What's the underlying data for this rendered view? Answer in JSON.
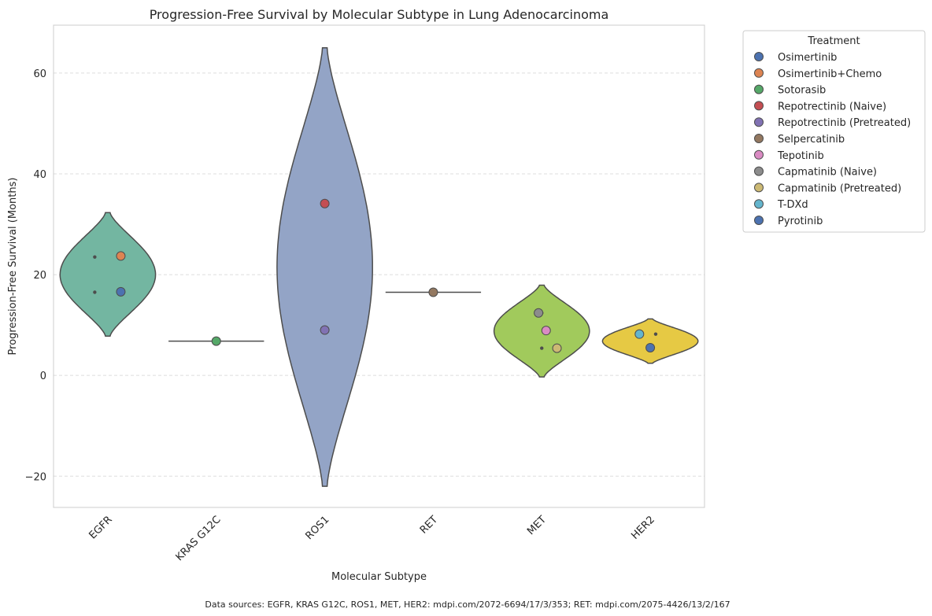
{
  "chart_data": {
    "type": "violin",
    "title": "Progression-Free Survival by Molecular Subtype in Lung Adenocarcinoma",
    "xlabel": "Molecular Subtype",
    "ylabel": "Progression-Free Survival (Months)",
    "ylim": [
      -26.2,
      69.5
    ],
    "yticks": [
      -20,
      0,
      20,
      40,
      60
    ],
    "ytick_labels": [
      "−20",
      "0",
      "20",
      "40",
      "60"
    ],
    "grid": "y-dashed",
    "categories": [
      "EGFR",
      "KRAS G12C",
      "ROS1",
      "RET",
      "MET",
      "HER2"
    ],
    "violins": [
      {
        "category": "EGFR",
        "color": "#73b6a1",
        "min": 7.8,
        "max": 32.3,
        "center": 20.0,
        "half_width": 0.44,
        "values": [
          23.5,
          16.5
        ]
      },
      {
        "category": "KRAS G12C",
        "color": "#f0a07a",
        "min": 6.8,
        "max": 6.8,
        "center": 6.8,
        "half_width": 0.0,
        "values": [
          6.8
        ]
      },
      {
        "category": "ROS1",
        "color": "#93a4c6",
        "min": -22.0,
        "max": 65.0,
        "center": 21.5,
        "half_width": 0.44,
        "values": [
          34.1,
          9.0
        ]
      },
      {
        "category": "RET",
        "color": "#e095c0",
        "min": 16.5,
        "max": 16.5,
        "center": 16.5,
        "half_width": 0.0,
        "values": [
          16.5
        ]
      },
      {
        "category": "MET",
        "color": "#a1ca5c",
        "min": -0.3,
        "max": 17.9,
        "center": 8.8,
        "half_width": 0.44,
        "values": [
          12.4,
          8.9,
          5.4
        ]
      },
      {
        "category": "HER2",
        "color": "#e6c944",
        "min": 2.4,
        "max": 11.2,
        "center": 6.8,
        "half_width": 0.44,
        "values": [
          8.2,
          5.5
        ]
      }
    ],
    "points": [
      {
        "treatment": "Osimertinib",
        "category": "EGFR",
        "value": 16.6,
        "offset": 0.12
      },
      {
        "treatment": "Osimertinib+Chemo",
        "category": "EGFR",
        "value": 23.7,
        "offset": 0.12
      },
      {
        "treatment": "Sotorasib",
        "category": "KRAS G12C",
        "value": 6.8,
        "offset": 0.0
      },
      {
        "treatment": "Repotrectinib (Naive)",
        "category": "ROS1",
        "value": 34.1,
        "offset": 0.0
      },
      {
        "treatment": "Repotrectinib (Pretreated)",
        "category": "ROS1",
        "value": 9.0,
        "offset": 0.0
      },
      {
        "treatment": "Selpercatinib",
        "category": "RET",
        "value": 16.5,
        "offset": 0.0
      },
      {
        "treatment": "Tepotinib",
        "category": "MET",
        "value": 8.9,
        "offset": 0.04
      },
      {
        "treatment": "Capmatinib (Naive)",
        "category": "MET",
        "value": 12.4,
        "offset": -0.03
      },
      {
        "treatment": "Capmatinib (Pretreated)",
        "category": "MET",
        "value": 5.4,
        "offset": 0.14
      },
      {
        "treatment": "T-DXd",
        "category": "HER2",
        "value": 8.2,
        "offset": -0.1
      },
      {
        "treatment": "Pyrotinib",
        "category": "HER2",
        "value": 5.5,
        "offset": 0.0
      }
    ],
    "median_dots": [
      {
        "category": "EGFR",
        "value": 23.5,
        "offset": -0.12
      },
      {
        "category": "EGFR",
        "value": 16.5,
        "offset": -0.12
      },
      {
        "category": "MET",
        "value": 12.4,
        "offset": 0.0
      },
      {
        "category": "MET",
        "value": 5.4,
        "offset": 0.0
      },
      {
        "category": "HER2",
        "value": 8.2,
        "offset": 0.05
      }
    ],
    "legend": {
      "title": "Treatment",
      "placement": "outside-right-top",
      "entries": [
        {
          "label": "Osimertinib",
          "color": "#4c72b0"
        },
        {
          "label": "Osimertinib+Chemo",
          "color": "#dd8452"
        },
        {
          "label": "Sotorasib",
          "color": "#55a868"
        },
        {
          "label": "Repotrectinib (Naive)",
          "color": "#c44e52"
        },
        {
          "label": "Repotrectinib (Pretreated)",
          "color": "#8172b3"
        },
        {
          "label": "Selpercatinib",
          "color": "#937860"
        },
        {
          "label": "Tepotinib",
          "color": "#da8bc3"
        },
        {
          "label": "Capmatinib (Naive)",
          "color": "#8c8c8c"
        },
        {
          "label": "Capmatinib (Pretreated)",
          "color": "#ccb974"
        },
        {
          "label": "T-DXd",
          "color": "#64b5cd"
        },
        {
          "label": "Pyrotinib",
          "color": "#4c72b0"
        }
      ]
    },
    "source_note": "Data sources: EGFR, KRAS G12C, ROS1, MET, HER2: mdpi.com/2072-6694/17/3/353; RET: mdpi.com/2075-4426/13/2/167"
  }
}
